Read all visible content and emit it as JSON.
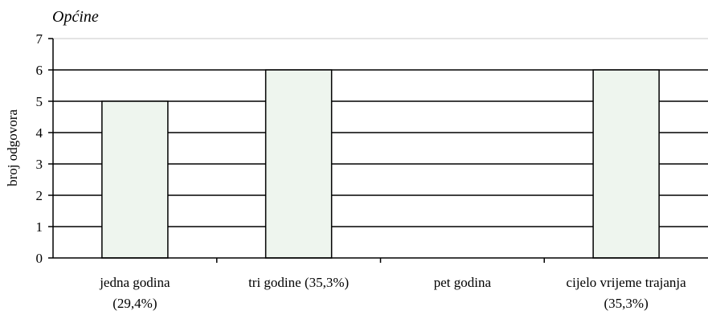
{
  "chart_data": {
    "type": "bar",
    "title": "Općine",
    "ylabel": "broj odgovora",
    "xlabel": "",
    "categories": [
      [
        "jedna godina",
        "(29,4%)"
      ],
      [
        "tri godine (35,3%)"
      ],
      [
        "pet godina"
      ],
      [
        "cijelo vrijeme trajanja",
        "(35,3%)"
      ]
    ],
    "values": [
      5,
      6,
      0,
      6
    ],
    "ylim": [
      0,
      7
    ],
    "yticks": [
      "0",
      "1",
      "2",
      "3",
      "4",
      "5",
      "6",
      "7"
    ],
    "grid": true,
    "legend": "none",
    "colors": {
      "bar_fill": "#eef5ee",
      "bar_stroke": "#000000",
      "grid": "#000000"
    }
  }
}
